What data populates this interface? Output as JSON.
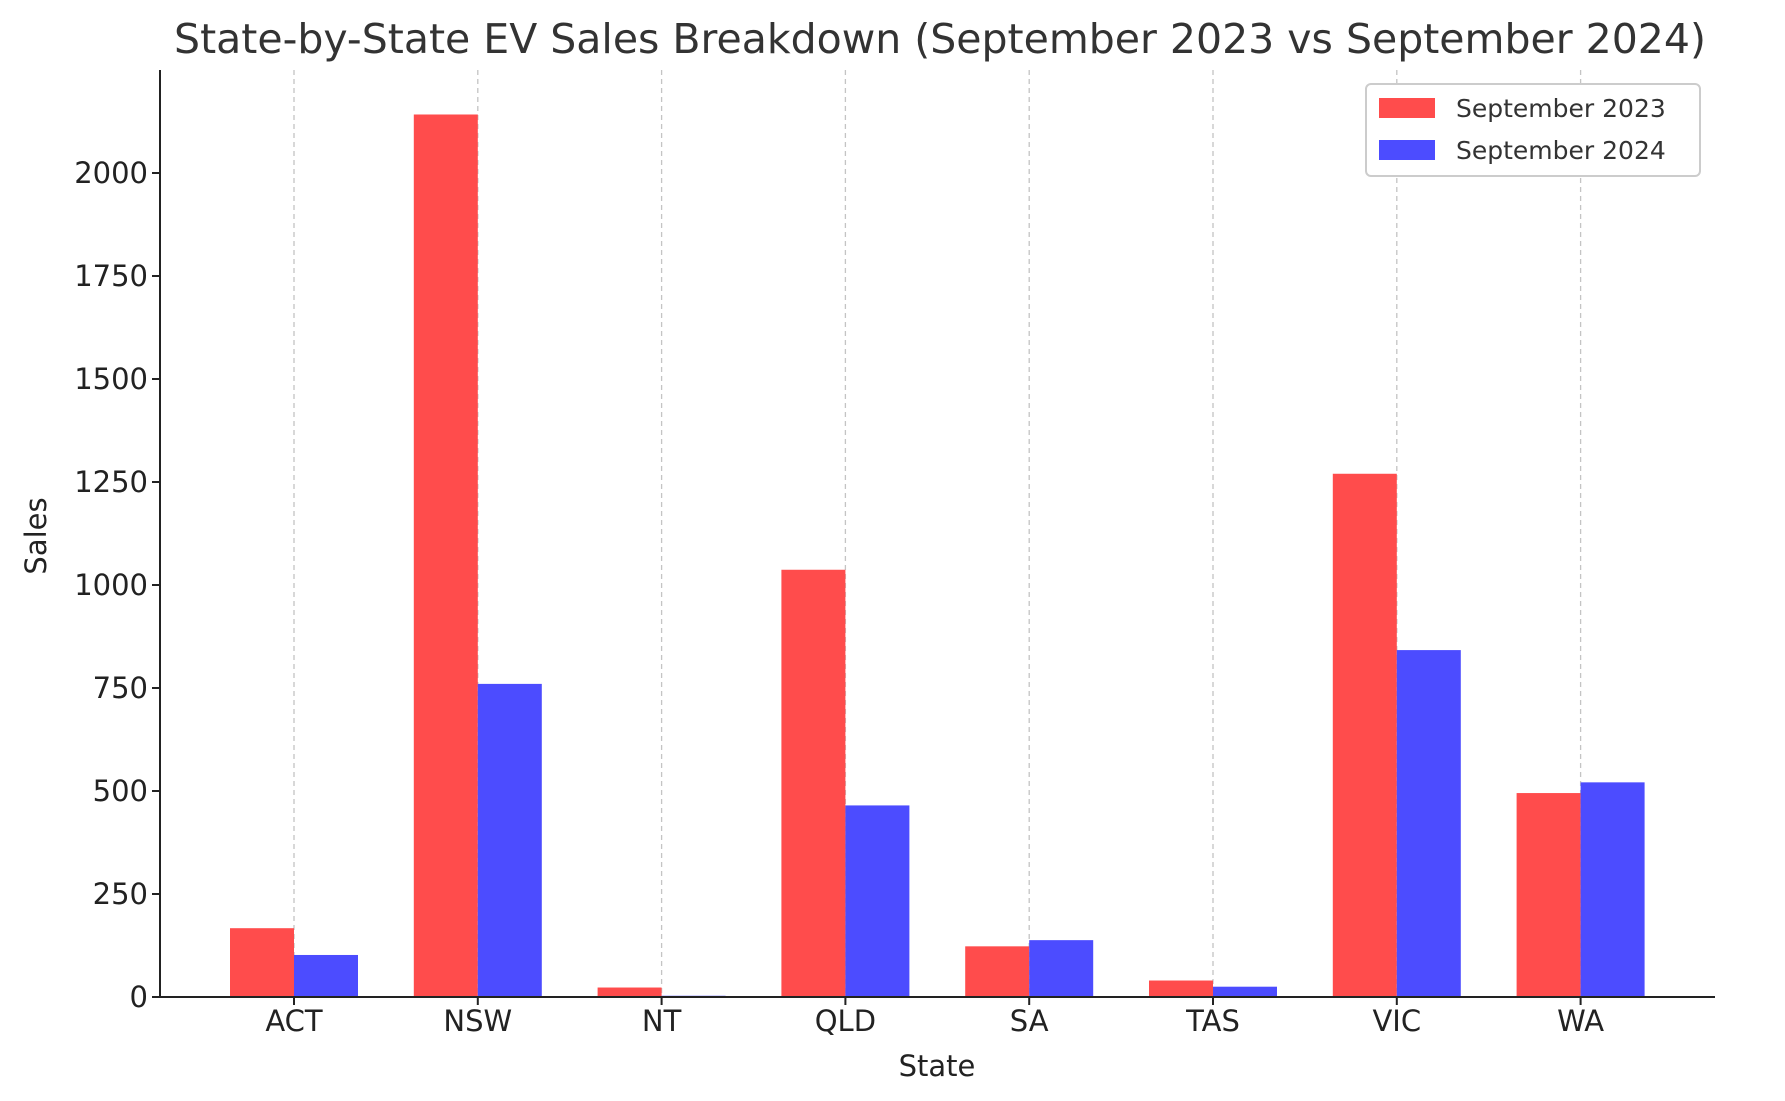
{
  "chart_data": {
    "type": "bar",
    "title": "State-by-State EV Sales Breakdown (September 2023 vs September 2024)",
    "xlabel": "State",
    "ylabel": "Sales",
    "categories": [
      "ACT",
      "NSW",
      "NT",
      "QLD",
      "SA",
      "TAS",
      "VIC",
      "WA"
    ],
    "series": [
      {
        "name": "September 2023",
        "color": "#ff4c4c",
        "values": [
          167,
          2142,
          23,
          1037,
          123,
          40,
          1270,
          495
        ]
      },
      {
        "name": "September 2024",
        "color": "#4c4cff",
        "values": [
          102,
          760,
          3,
          465,
          138,
          25,
          842,
          521
        ]
      }
    ],
    "ylim": [
      0,
      2250
    ],
    "yticks": [
      "0",
      "250",
      "500",
      "750",
      "1000",
      "1250",
      "1500",
      "1750",
      "2000"
    ],
    "grid": "vertical dashed",
    "legend_position": "top-right"
  }
}
